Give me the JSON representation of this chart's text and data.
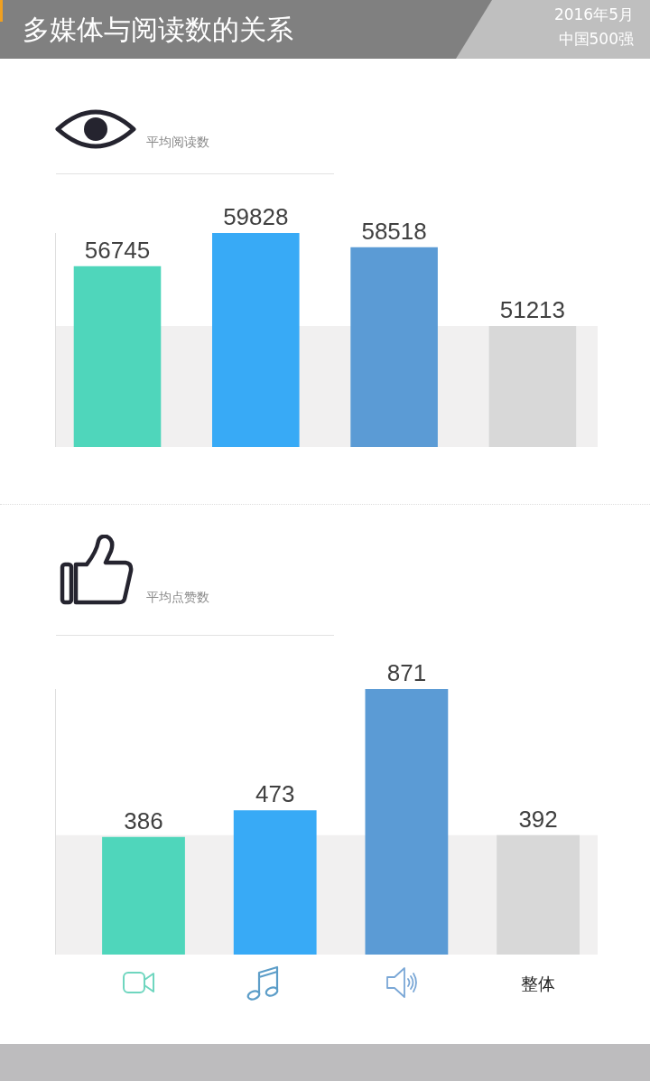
{
  "chart_data": [
    {
      "type": "other",
      "title": "多媒体与阅读数的关系",
      "annotations": [
        "2016年5月",
        "中国500强"
      ]
    },
    {
      "type": "bar",
      "title": "平均阅读数",
      "categories": [
        null,
        null,
        null,
        null
      ],
      "values": [
        56745,
        59828,
        58518,
        51213
      ],
      "colors": [
        "#4fd6bb",
        "#38aaf6",
        "#5b9bd5",
        "#d8d8d8"
      ],
      "ylim": [
        40000,
        59828
      ],
      "bands": [
        {
          "axis": "y",
          "from": 40000,
          "to": 51213,
          "color": "#f1f0f0"
        }
      ],
      "data_labels": true,
      "tick_labels": false
    },
    {
      "type": "bar",
      "title": "平均点赞数",
      "categories": [
        null,
        null,
        null,
        "整体"
      ],
      "values": [
        386,
        473,
        871,
        392
      ],
      "colors": [
        "#4fd6bb",
        "#38aaf6",
        "#5b9bd5",
        "#d8d8d8"
      ],
      "ylim": [
        0,
        871
      ],
      "bands": [
        {
          "axis": "y",
          "from": 0,
          "to": 392,
          "color": "#f1f0f0"
        }
      ],
      "data_labels": true,
      "tick_labels": "x"
    }
  ]
}
